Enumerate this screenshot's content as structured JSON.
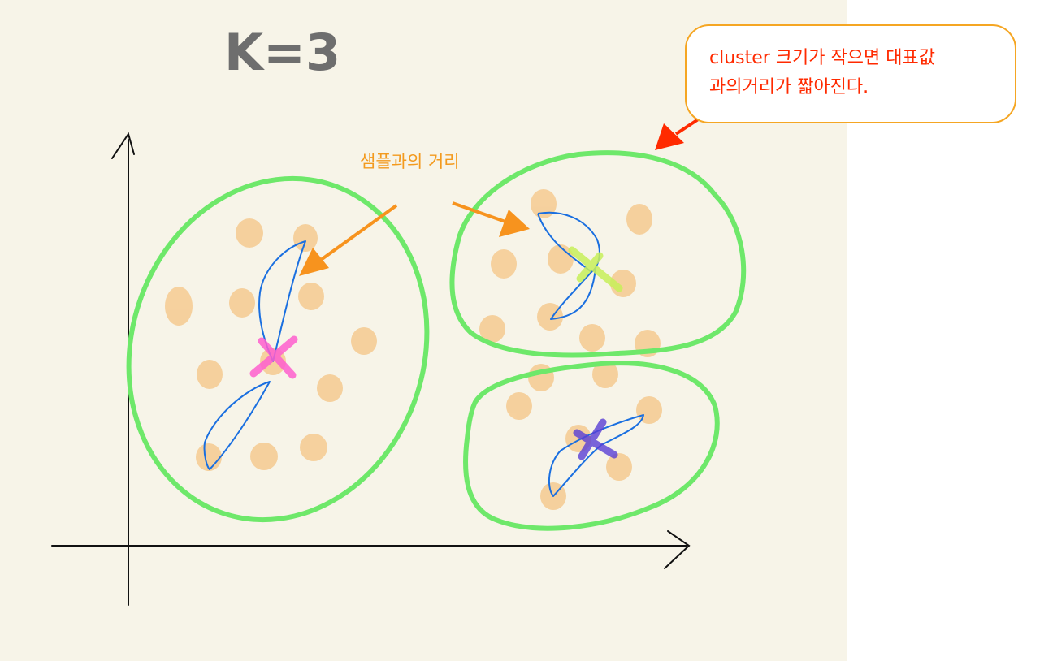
{
  "title": "K=3",
  "distance_label": "샘플과의 거리",
  "callout": {
    "line1": "cluster 크기가 작으면 대표값",
    "line2": "과의거리가 짧아진다."
  },
  "colors": {
    "background": "#f7f4e8",
    "cluster_outline": "#6ee86a",
    "sample_dot": "#f5cf9a",
    "distance_stroke": "#1a6fe0",
    "arrow_orange": "#f7931e",
    "arrow_red": "#ff2a00",
    "centroid_1": "#ff5fcf",
    "centroid_2": "#c8f05a",
    "centroid_3": "#5a3fd6"
  },
  "clusters": [
    {
      "name": "cluster-left",
      "centroid_color": "#ff5fcf"
    },
    {
      "name": "cluster-top-right",
      "centroid_color": "#c8f05a"
    },
    {
      "name": "cluster-bottom-right",
      "centroid_color": "#5a3fd6"
    }
  ]
}
